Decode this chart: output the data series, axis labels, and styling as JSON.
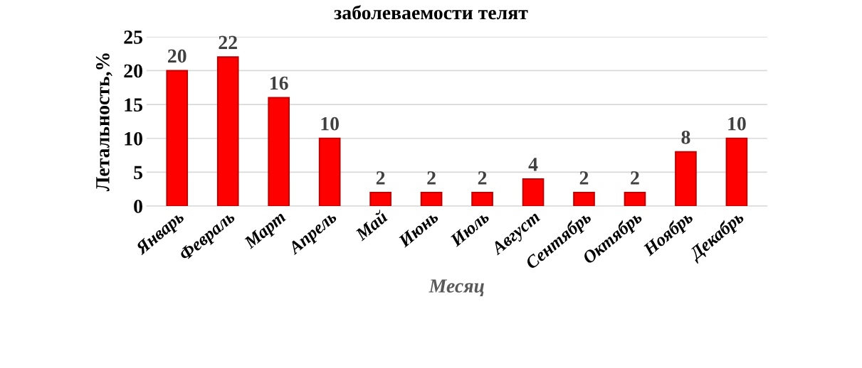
{
  "chart_data": {
    "type": "bar",
    "title": "заболеваемости телят",
    "categories": [
      "Январь",
      "Февраль",
      "Март",
      "Апрель",
      "Май",
      "Июнь",
      "Июль",
      "Август",
      "Сентябрь",
      "Октябрь",
      "Ноябрь",
      "Декабрь"
    ],
    "values": [
      20,
      22,
      16,
      10,
      2,
      2,
      2,
      4,
      2,
      2,
      8,
      10
    ],
    "color": "#ff0000",
    "xlabel": "Месяц",
    "ylabel": "Летальность,%",
    "ylim": [
      0,
      25
    ],
    "yticks": [
      0,
      5,
      10,
      15,
      20,
      25
    ],
    "grid": "y",
    "data_labels": true
  }
}
